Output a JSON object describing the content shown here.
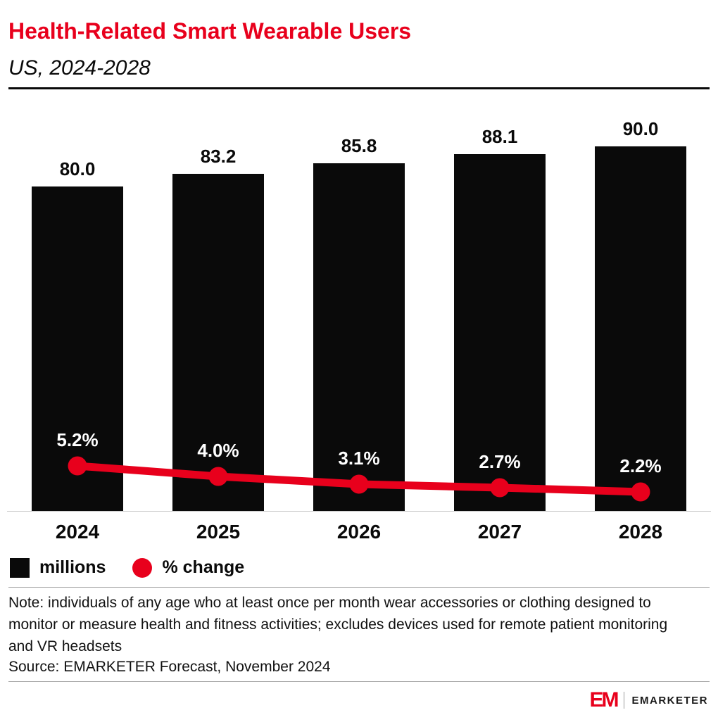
{
  "header": {
    "title": "Health-Related Smart Wearable Users",
    "subtitle": "US, 2024-2028"
  },
  "chart_data": {
    "type": "bar",
    "title": "Health-Related Smart Wearable Users",
    "subtitle": "US, 2024-2028",
    "categories": [
      "2024",
      "2025",
      "2026",
      "2027",
      "2028"
    ],
    "series": [
      {
        "name": "millions",
        "type": "bar",
        "values": [
          80.0,
          83.2,
          85.8,
          88.1,
          90.0
        ]
      },
      {
        "name": "% change",
        "type": "line",
        "values": [
          5.2,
          4.0,
          3.1,
          2.7,
          2.2
        ]
      }
    ],
    "bar_value_labels": [
      "80.0",
      "83.2",
      "85.8",
      "88.1",
      "90.0"
    ],
    "pct_value_labels": [
      "5.2%",
      "4.0%",
      "3.1%",
      "2.7%",
      "2.2%"
    ],
    "xlabel": "",
    "ylabel": "",
    "ylim": [
      0,
      95
    ],
    "grid": false,
    "y_axis_ticks_visible": false,
    "legend_position": "bottom-left",
    "colors": {
      "bar": "#0a0a0a",
      "line": "#e8001c"
    },
    "legend": [
      {
        "label": "millions",
        "color": "#0a0a0a",
        "shape": "square"
      },
      {
        "label": "% change",
        "color": "#e8001c",
        "shape": "circle"
      }
    ]
  },
  "footer": {
    "note": "Note: individuals of any age who at least once per month wear accessories or clothing designed to monitor or measure health and fitness activities; excludes devices used for remote patient monitoring and VR headsets",
    "source": "Source: EMARKETER Forecast, November 2024"
  },
  "branding": {
    "logo_mark": "EM",
    "logo_text": "EMARKETER"
  }
}
